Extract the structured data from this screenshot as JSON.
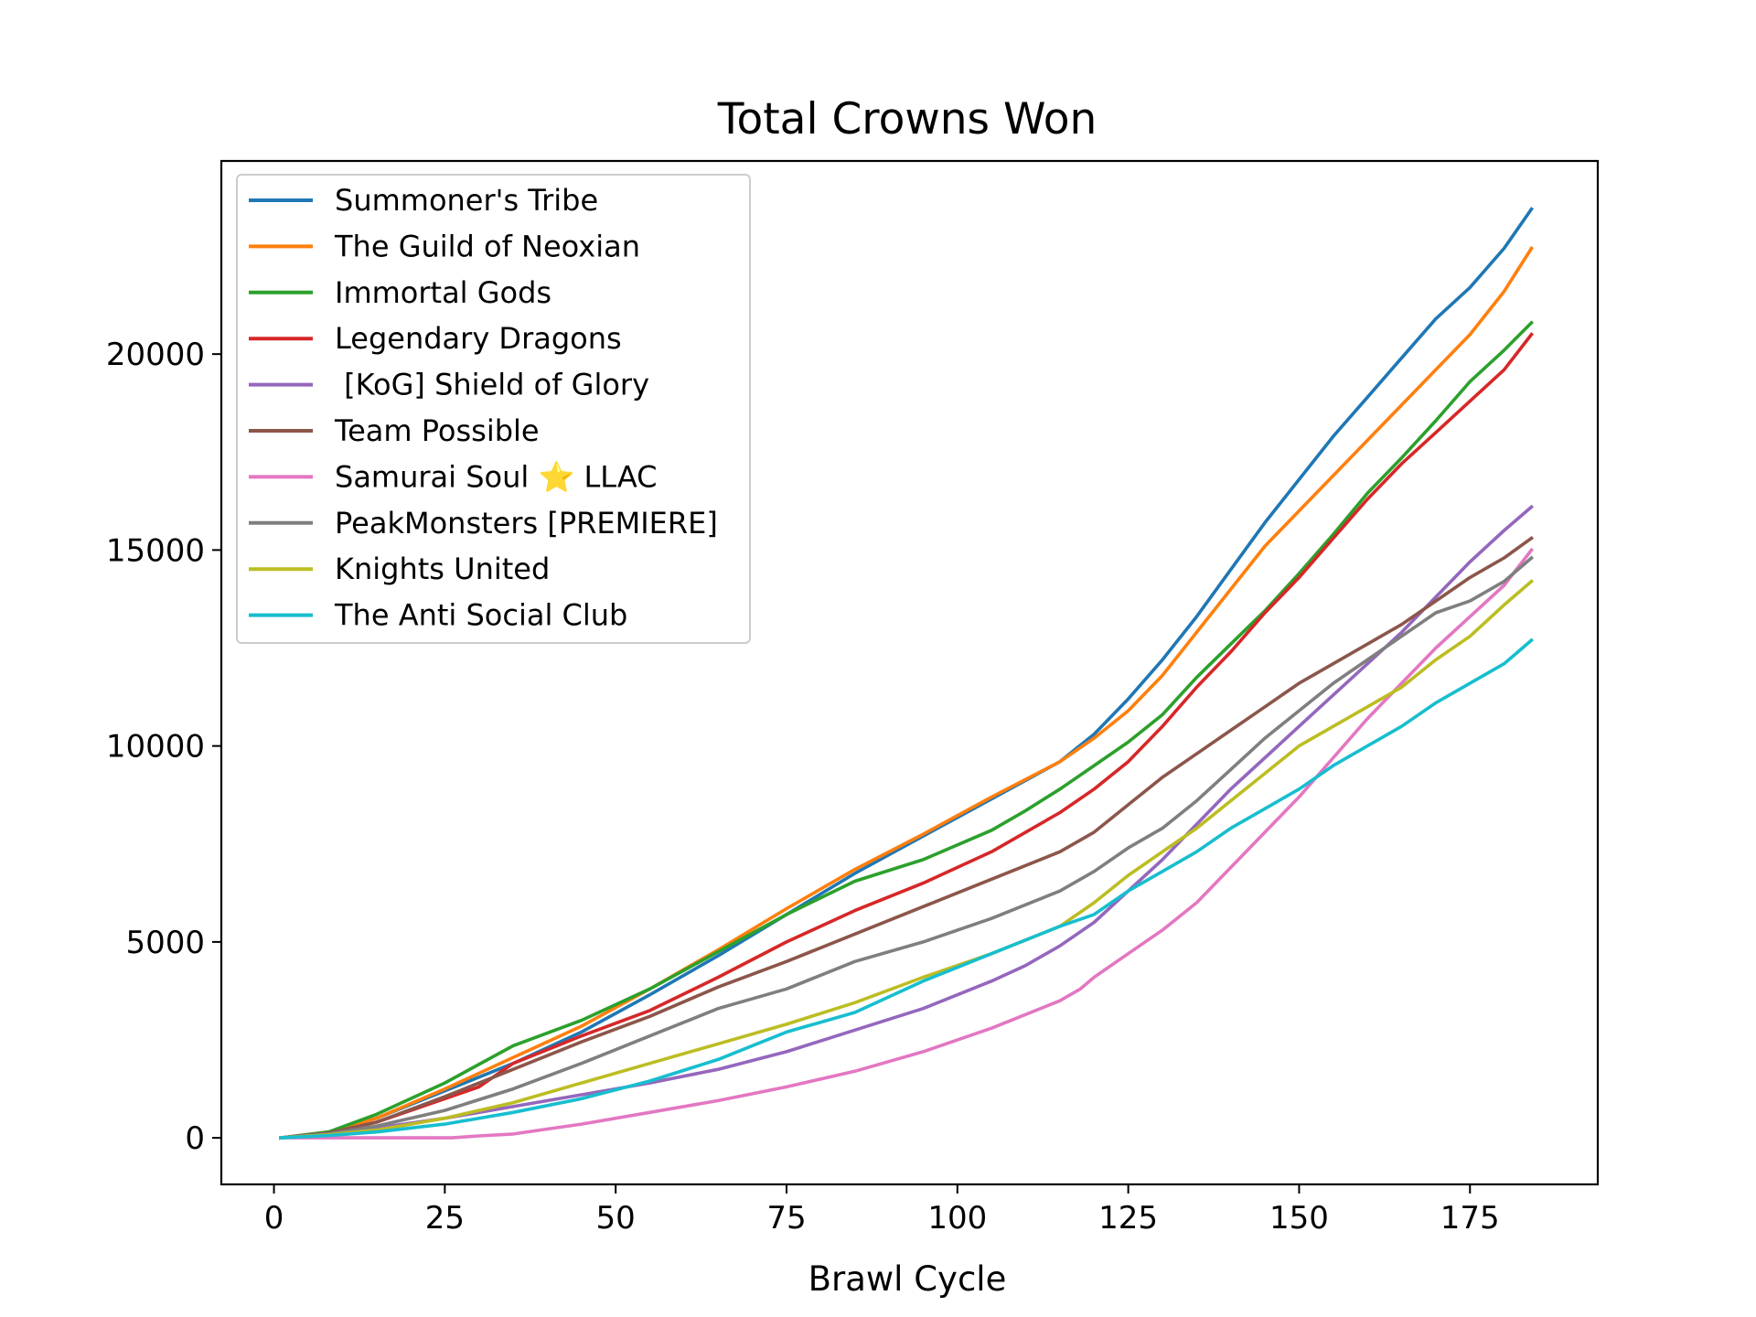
{
  "chart_data": {
    "type": "line",
    "title": "Total Crowns Won",
    "xlabel": "Brawl Cycle",
    "ylabel": "",
    "xlim": [
      -7.7,
      193.7
    ],
    "ylim": [
      -1187,
      24928
    ],
    "x_ticks": [
      0,
      25,
      50,
      75,
      100,
      125,
      150,
      175
    ],
    "x_tick_labels": [
      "0",
      "25",
      "50",
      "75",
      "100",
      "125",
      "150",
      "175"
    ],
    "y_ticks": [
      0,
      5000,
      10000,
      15000,
      20000
    ],
    "y_tick_labels": [
      "0",
      "5000",
      "10000",
      "15000",
      "20000"
    ],
    "grid": false,
    "legend_position": "upper-left",
    "series": [
      {
        "name": "Summoner's Tribe",
        "color": "#1f77b4",
        "points": [
          [
            1,
            0
          ],
          [
            8,
            150
          ],
          [
            15,
            500
          ],
          [
            25,
            1200
          ],
          [
            35,
            1900
          ],
          [
            45,
            2700
          ],
          [
            55,
            3650
          ],
          [
            65,
            4650
          ],
          [
            75,
            5700
          ],
          [
            85,
            6750
          ],
          [
            95,
            7700
          ],
          [
            105,
            8650
          ],
          [
            115,
            9600
          ],
          [
            120,
            10300
          ],
          [
            125,
            11200
          ],
          [
            130,
            12200
          ],
          [
            135,
            13300
          ],
          [
            140,
            14500
          ],
          [
            145,
            15700
          ],
          [
            150,
            16800
          ],
          [
            155,
            17900
          ],
          [
            160,
            18900
          ],
          [
            165,
            19900
          ],
          [
            170,
            20900
          ],
          [
            175,
            21700
          ],
          [
            180,
            22700
          ],
          [
            184,
            23700
          ]
        ]
      },
      {
        "name": "The Guild of Neoxian",
        "color": "#ff7f0e",
        "points": [
          [
            1,
            0
          ],
          [
            8,
            150
          ],
          [
            15,
            500
          ],
          [
            25,
            1250
          ],
          [
            35,
            2050
          ],
          [
            45,
            2850
          ],
          [
            55,
            3800
          ],
          [
            65,
            4800
          ],
          [
            75,
            5850
          ],
          [
            85,
            6850
          ],
          [
            95,
            7750
          ],
          [
            105,
            8700
          ],
          [
            115,
            9600
          ],
          [
            120,
            10200
          ],
          [
            125,
            10900
          ],
          [
            130,
            11800
          ],
          [
            135,
            12900
          ],
          [
            140,
            14000
          ],
          [
            145,
            15100
          ],
          [
            150,
            16000
          ],
          [
            155,
            16900
          ],
          [
            160,
            17800
          ],
          [
            165,
            18700
          ],
          [
            170,
            19600
          ],
          [
            175,
            20500
          ],
          [
            180,
            21600
          ],
          [
            184,
            22700
          ]
        ]
      },
      {
        "name": "Immortal Gods",
        "color": "#2ca02c",
        "points": [
          [
            1,
            0
          ],
          [
            8,
            150
          ],
          [
            15,
            600
          ],
          [
            25,
            1400
          ],
          [
            35,
            2350
          ],
          [
            45,
            3000
          ],
          [
            55,
            3800
          ],
          [
            65,
            4750
          ],
          [
            75,
            5700
          ],
          [
            85,
            6550
          ],
          [
            95,
            7100
          ],
          [
            105,
            7850
          ],
          [
            110,
            8350
          ],
          [
            115,
            8900
          ],
          [
            120,
            9500
          ],
          [
            125,
            10100
          ],
          [
            130,
            10800
          ],
          [
            135,
            11750
          ],
          [
            140,
            12600
          ],
          [
            145,
            13450
          ],
          [
            150,
            14400
          ],
          [
            155,
            15400
          ],
          [
            160,
            16450
          ],
          [
            165,
            17350
          ],
          [
            170,
            18300
          ],
          [
            175,
            19300
          ],
          [
            180,
            20100
          ],
          [
            184,
            20800
          ]
        ]
      },
      {
        "name": "Legendary Dragons",
        "color": "#d62728",
        "points": [
          [
            1,
            0
          ],
          [
            8,
            120
          ],
          [
            15,
            400
          ],
          [
            25,
            1000
          ],
          [
            30,
            1300
          ],
          [
            35,
            1900
          ],
          [
            45,
            2600
          ],
          [
            55,
            3250
          ],
          [
            65,
            4100
          ],
          [
            75,
            5000
          ],
          [
            85,
            5800
          ],
          [
            95,
            6500
          ],
          [
            105,
            7300
          ],
          [
            115,
            8300
          ],
          [
            120,
            8900
          ],
          [
            125,
            9600
          ],
          [
            130,
            10500
          ],
          [
            135,
            11500
          ],
          [
            140,
            12400
          ],
          [
            145,
            13400
          ],
          [
            150,
            14300
          ],
          [
            155,
            15300
          ],
          [
            160,
            16300
          ],
          [
            165,
            17200
          ],
          [
            170,
            18000
          ],
          [
            175,
            18800
          ],
          [
            180,
            19600
          ],
          [
            184,
            20500
          ]
        ]
      },
      {
        "name": " [KoG] Shield of Glory",
        "color": "#9467bd",
        "points": [
          [
            1,
            0
          ],
          [
            8,
            80
          ],
          [
            15,
            250
          ],
          [
            25,
            500
          ],
          [
            35,
            800
          ],
          [
            45,
            1100
          ],
          [
            55,
            1400
          ],
          [
            65,
            1750
          ],
          [
            75,
            2200
          ],
          [
            85,
            2750
          ],
          [
            95,
            3300
          ],
          [
            105,
            4000
          ],
          [
            110,
            4400
          ],
          [
            115,
            4900
          ],
          [
            120,
            5500
          ],
          [
            125,
            6300
          ],
          [
            130,
            7100
          ],
          [
            135,
            8000
          ],
          [
            140,
            8900
          ],
          [
            145,
            9700
          ],
          [
            150,
            10500
          ],
          [
            155,
            11300
          ],
          [
            160,
            12100
          ],
          [
            165,
            12900
          ],
          [
            170,
            13800
          ],
          [
            175,
            14700
          ],
          [
            180,
            15500
          ],
          [
            184,
            16100
          ]
        ]
      },
      {
        "name": "Team Possible",
        "color": "#8c564b",
        "points": [
          [
            1,
            0
          ],
          [
            8,
            120
          ],
          [
            15,
            400
          ],
          [
            25,
            1050
          ],
          [
            35,
            1750
          ],
          [
            45,
            2450
          ],
          [
            55,
            3100
          ],
          [
            65,
            3850
          ],
          [
            75,
            4500
          ],
          [
            85,
            5200
          ],
          [
            95,
            5900
          ],
          [
            105,
            6600
          ],
          [
            115,
            7300
          ],
          [
            120,
            7800
          ],
          [
            125,
            8500
          ],
          [
            130,
            9200
          ],
          [
            135,
            9800
          ],
          [
            140,
            10400
          ],
          [
            145,
            11000
          ],
          [
            150,
            11600
          ],
          [
            155,
            12100
          ],
          [
            160,
            12600
          ],
          [
            165,
            13100
          ],
          [
            170,
            13700
          ],
          [
            175,
            14300
          ],
          [
            180,
            14800
          ],
          [
            184,
            15300
          ]
        ]
      },
      {
        "name": "Samurai Soul ⭐ LLAC",
        "color": "#e377c2",
        "points": [
          [
            1,
            0
          ],
          [
            10,
            0
          ],
          [
            20,
            0
          ],
          [
            26,
            0
          ],
          [
            30,
            50
          ],
          [
            35,
            100
          ],
          [
            45,
            350
          ],
          [
            55,
            650
          ],
          [
            65,
            950
          ],
          [
            75,
            1300
          ],
          [
            85,
            1700
          ],
          [
            95,
            2200
          ],
          [
            105,
            2800
          ],
          [
            115,
            3500
          ],
          [
            118,
            3800
          ],
          [
            120,
            4100
          ],
          [
            125,
            4700
          ],
          [
            130,
            5300
          ],
          [
            135,
            6000
          ],
          [
            140,
            6900
          ],
          [
            145,
            7800
          ],
          [
            150,
            8700
          ],
          [
            155,
            9700
          ],
          [
            160,
            10700
          ],
          [
            165,
            11600
          ],
          [
            170,
            12500
          ],
          [
            175,
            13300
          ],
          [
            180,
            14100
          ],
          [
            184,
            15000
          ]
        ]
      },
      {
        "name": "PeakMonsters [PREMIERE]",
        "color": "#7f7f7f",
        "points": [
          [
            1,
            0
          ],
          [
            8,
            100
          ],
          [
            15,
            300
          ],
          [
            25,
            700
          ],
          [
            35,
            1250
          ],
          [
            45,
            1900
          ],
          [
            55,
            2600
          ],
          [
            65,
            3300
          ],
          [
            75,
            3800
          ],
          [
            85,
            4500
          ],
          [
            95,
            5000
          ],
          [
            105,
            5600
          ],
          [
            115,
            6300
          ],
          [
            120,
            6800
          ],
          [
            125,
            7400
          ],
          [
            130,
            7900
          ],
          [
            135,
            8600
          ],
          [
            140,
            9400
          ],
          [
            145,
            10200
          ],
          [
            150,
            10900
          ],
          [
            155,
            11600
          ],
          [
            160,
            12200
          ],
          [
            165,
            12800
          ],
          [
            170,
            13400
          ],
          [
            175,
            13700
          ],
          [
            180,
            14200
          ],
          [
            184,
            14800
          ]
        ]
      },
      {
        "name": "Knights United",
        "color": "#bcbd22",
        "points": [
          [
            1,
            0
          ],
          [
            8,
            80
          ],
          [
            15,
            200
          ],
          [
            25,
            500
          ],
          [
            35,
            900
          ],
          [
            45,
            1400
          ],
          [
            55,
            1900
          ],
          [
            65,
            2400
          ],
          [
            75,
            2900
          ],
          [
            85,
            3450
          ],
          [
            95,
            4100
          ],
          [
            105,
            4700
          ],
          [
            115,
            5400
          ],
          [
            120,
            6000
          ],
          [
            125,
            6700
          ],
          [
            130,
            7300
          ],
          [
            135,
            7900
          ],
          [
            140,
            8600
          ],
          [
            145,
            9300
          ],
          [
            150,
            10000
          ],
          [
            155,
            10500
          ],
          [
            160,
            11000
          ],
          [
            165,
            11500
          ],
          [
            170,
            12200
          ],
          [
            175,
            12800
          ],
          [
            180,
            13600
          ],
          [
            184,
            14200
          ]
        ]
      },
      {
        "name": "The Anti Social Club",
        "color": "#17becf",
        "points": [
          [
            1,
            0
          ],
          [
            8,
            60
          ],
          [
            15,
            150
          ],
          [
            25,
            350
          ],
          [
            35,
            650
          ],
          [
            45,
            1000
          ],
          [
            55,
            1450
          ],
          [
            65,
            2000
          ],
          [
            75,
            2700
          ],
          [
            85,
            3200
          ],
          [
            95,
            4000
          ],
          [
            105,
            4700
          ],
          [
            115,
            5400
          ],
          [
            120,
            5700
          ],
          [
            125,
            6300
          ],
          [
            130,
            6800
          ],
          [
            135,
            7300
          ],
          [
            140,
            7900
          ],
          [
            145,
            8400
          ],
          [
            150,
            8900
          ],
          [
            155,
            9500
          ],
          [
            160,
            10000
          ],
          [
            165,
            10500
          ],
          [
            170,
            11100
          ],
          [
            175,
            11600
          ],
          [
            180,
            12100
          ],
          [
            184,
            12700
          ]
        ]
      }
    ]
  }
}
